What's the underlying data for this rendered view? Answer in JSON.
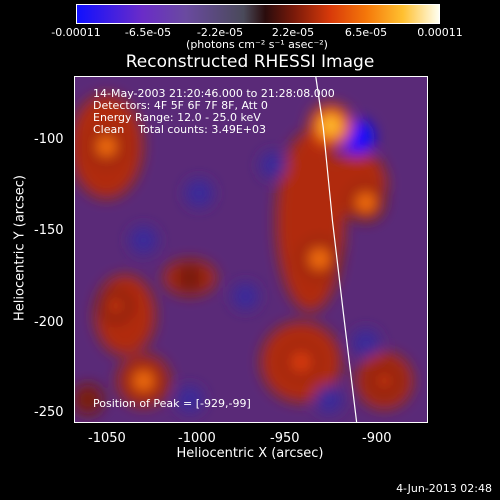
{
  "colorbar": {
    "ticks": [
      "-0.00011",
      "-6.5e-05",
      "-2.2e-05",
      "2.2e-05",
      "6.5e-05",
      "0.00011"
    ],
    "unit": "(photons cm⁻² s⁻¹ asec⁻²)"
  },
  "info": {
    "line1": "14-May-2003 21:20:46.000 to 21:28:08.000",
    "line2": "Detectors: 4F 5F 6F 7F 8F, Att 0",
    "line3": "Energy Range: 12.0 - 25.0 keV",
    "line4": "Clean    Total counts: 3.49E+03",
    "peak": "Position of Peak = [-929,-99]"
  },
  "footer": "4-Jun-2013 02:48",
  "chart_data": {
    "type": "heatmap",
    "title": "Reconstructed RHESSI Image",
    "xlabel": "Heliocentric X (arcsec)",
    "ylabel": "Heliocentric Y (arcsec)",
    "xlim": [
      -1067,
      -877
    ],
    "ylim": [
      -257,
      -73
    ],
    "x_ticks": [
      -1050,
      -1000,
      -950,
      -900
    ],
    "y_ticks": [
      -100,
      -150,
      -200,
      -250
    ],
    "x_tick_labels": [
      "-1050",
      "-1000",
      "-950",
      "-900"
    ],
    "y_tick_labels": [
      "-100",
      "-150",
      "-200",
      "-250"
    ],
    "value_range": [
      -0.00011,
      0.00011
    ],
    "colormap": [
      "#1010ff",
      "#6a2cc8",
      "#4a4a5a",
      "#2a0c0c",
      "#d83a0a",
      "#f5780a",
      "#ffc030",
      "#fffff0"
    ],
    "peak_position": [
      -929,
      -99
    ],
    "limb_curve": [
      [
        -937,
        -73
      ],
      [
        -933,
        -100
      ],
      [
        -928,
        -150
      ],
      [
        -922,
        -200
      ],
      [
        -915,
        -257
      ]
    ],
    "bright_sources": [
      {
        "x": -929,
        "y": -99,
        "value": 0.00011
      },
      {
        "x": -910,
        "y": -140,
        "value": 8e-05
      },
      {
        "x": -935,
        "y": -170,
        "value": 9e-05
      },
      {
        "x": -1050,
        "y": -110,
        "value": 8e-05
      },
      {
        "x": -1030,
        "y": -235,
        "value": 8e-05
      },
      {
        "x": -1045,
        "y": -195,
        "value": 6e-05
      },
      {
        "x": -1005,
        "y": -180,
        "value": 5e-05
      },
      {
        "x": -945,
        "y": -225,
        "value": 7e-05
      },
      {
        "x": -900,
        "y": -235,
        "value": 6e-05
      },
      {
        "x": -1060,
        "y": -245,
        "value": 5e-05
      }
    ],
    "dark_sources": [
      {
        "x": -915,
        "y": -105,
        "value": -0.00011
      },
      {
        "x": -1000,
        "y": -135,
        "value": -6e-05
      },
      {
        "x": -1030,
        "y": -160,
        "value": -6e-05
      },
      {
        "x": -960,
        "y": -120,
        "value": -5e-05
      },
      {
        "x": -910,
        "y": -215,
        "value": -6e-05
      },
      {
        "x": -1005,
        "y": -245,
        "value": -5e-05
      },
      {
        "x": -930,
        "y": -245,
        "value": -6e-05
      },
      {
        "x": -975,
        "y": -190,
        "value": -5e-05
      }
    ]
  }
}
